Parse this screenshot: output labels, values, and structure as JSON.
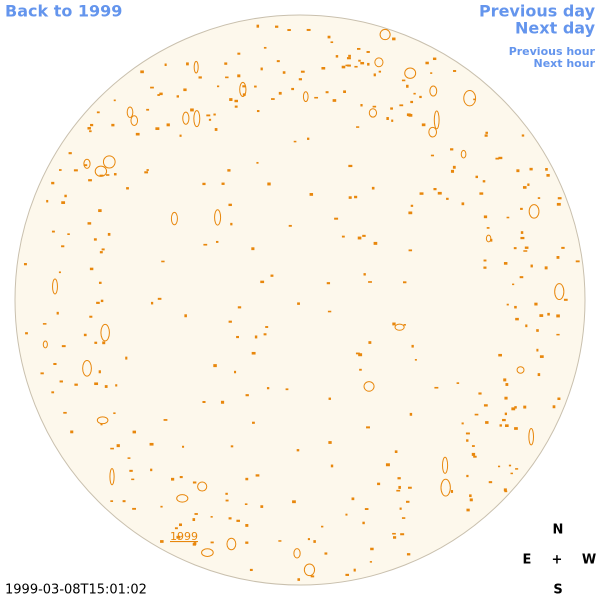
{
  "nav": {
    "back": "Back to 1999",
    "previous_day": "Previous day",
    "next_day": "Next day",
    "previous_hour": "Previous hour",
    "next_hour": "Next hour"
  },
  "year_link": "1999",
  "timestamp": "1999-03-08T15:01:02",
  "compass": {
    "north": "N",
    "east": "E",
    "center": "+",
    "west": "W",
    "south": "S"
  }
}
